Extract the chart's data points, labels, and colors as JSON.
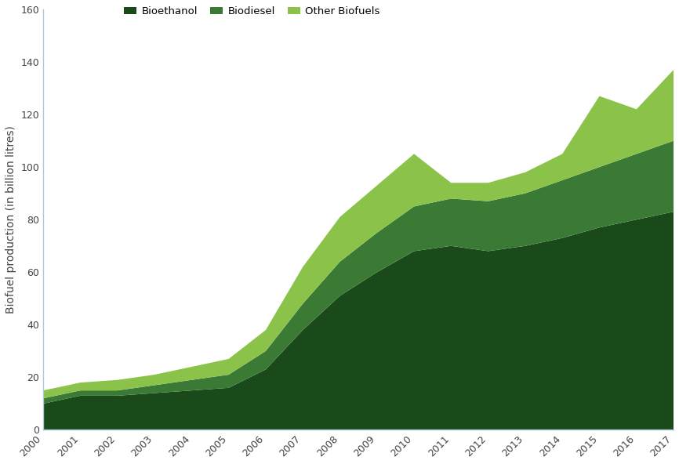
{
  "years": [
    2000,
    2001,
    2002,
    2003,
    2004,
    2005,
    2006,
    2007,
    2008,
    2009,
    2010,
    2011,
    2012,
    2013,
    2014,
    2015,
    2016,
    2017
  ],
  "bioethanol": [
    10,
    13,
    13,
    14,
    15,
    16,
    23,
    38,
    51,
    60,
    68,
    70,
    68,
    70,
    73,
    77,
    80,
    83
  ],
  "biodiesel": [
    2,
    2,
    2,
    3,
    4,
    5,
    7,
    10,
    13,
    15,
    17,
    18,
    19,
    20,
    22,
    23,
    25,
    27
  ],
  "other_biofuels": [
    3,
    3,
    4,
    4,
    5,
    6,
    8,
    14,
    17,
    18,
    20,
    6,
    7,
    8,
    10,
    27,
    17,
    27
  ],
  "colors": {
    "bioethanol": "#1a4a1a",
    "biodiesel": "#3a7a35",
    "other_biofuels": "#8bc34a"
  },
  "ylabel": "Biofuel production (in billion litres)",
  "ylim": [
    0,
    160
  ],
  "yticks": [
    0,
    20,
    40,
    60,
    80,
    100,
    120,
    140,
    160
  ],
  "legend_labels": [
    "Bioethanol",
    "Biodiesel",
    "Other Biofuels"
  ],
  "background_color": "#ffffff",
  "axis_color": "#aac8e0",
  "left_spine_color": "#aac8e0",
  "bottom_spine_color": "#aac8e0"
}
